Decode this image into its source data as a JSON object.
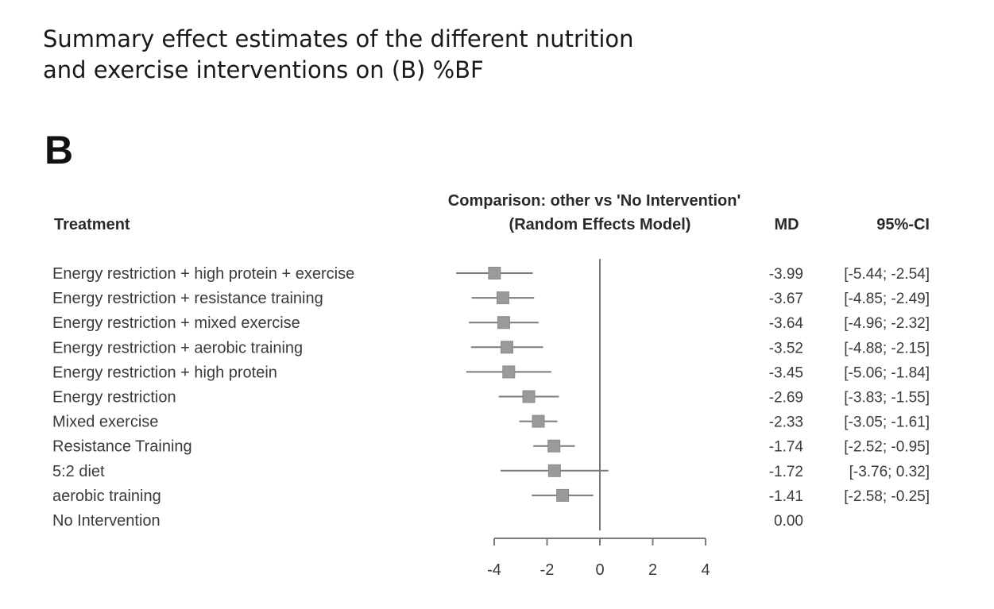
{
  "caption": {
    "line1": "Summary effect estimates of the different nutrition",
    "line2": "and exercise interventions on (B) %BF"
  },
  "panel_letter": "B",
  "chart_data": {
    "type": "forest",
    "title_line1": "Comparison: other vs 'No Intervention'",
    "title_line2": "(Random Effects Model)",
    "column_headers": {
      "treatment": "Treatment",
      "md": "MD",
      "ci": "95%-CI"
    },
    "xlim": [
      -4,
      4
    ],
    "xticks": [
      -4,
      -2,
      0,
      2,
      4
    ],
    "reference_line": 0,
    "rows": [
      {
        "label": "Energy restriction + high protein + exercise",
        "md": -3.99,
        "lower": -5.44,
        "upper": -2.54,
        "md_text": "-3.99",
        "ci_text": "[-5.44; -2.54]"
      },
      {
        "label": "Energy restriction + resistance training",
        "md": -3.67,
        "lower": -4.85,
        "upper": -2.49,
        "md_text": "-3.67",
        "ci_text": "[-4.85; -2.49]"
      },
      {
        "label": "Energy restriction + mixed exercise",
        "md": -3.64,
        "lower": -4.96,
        "upper": -2.32,
        "md_text": "-3.64",
        "ci_text": "[-4.96; -2.32]"
      },
      {
        "label": "Energy restriction + aerobic training",
        "md": -3.52,
        "lower": -4.88,
        "upper": -2.15,
        "md_text": "-3.52",
        "ci_text": "[-4.88; -2.15]"
      },
      {
        "label": "Energy restriction + high protein",
        "md": -3.45,
        "lower": -5.06,
        "upper": -1.84,
        "md_text": "-3.45",
        "ci_text": "[-5.06; -1.84]"
      },
      {
        "label": "Energy restriction",
        "md": -2.69,
        "lower": -3.83,
        "upper": -1.55,
        "md_text": "-2.69",
        "ci_text": "[-3.83; -1.55]"
      },
      {
        "label": "Mixed exercise",
        "md": -2.33,
        "lower": -3.05,
        "upper": -1.61,
        "md_text": "-2.33",
        "ci_text": "[-3.05; -1.61]"
      },
      {
        "label": "Resistance Training",
        "md": -1.74,
        "lower": -2.52,
        "upper": -0.95,
        "md_text": "-1.74",
        "ci_text": "[-2.52; -0.95]"
      },
      {
        "label": "5:2 diet",
        "md": -1.72,
        "lower": -3.76,
        "upper": 0.32,
        "md_text": "-1.72",
        "ci_text": "[-3.76;  0.32]"
      },
      {
        "label": "aerobic training",
        "md": -1.41,
        "lower": -2.58,
        "upper": -0.25,
        "md_text": "-1.41",
        "ci_text": "[-2.58; -0.25]"
      },
      {
        "label": "No Intervention",
        "md": 0.0,
        "lower": null,
        "upper": null,
        "md_text": "0.00",
        "ci_text": ""
      }
    ],
    "colors": {
      "mark": "#9a9a9a",
      "line": "#7a7a7a",
      "text": "#3a3a3a"
    }
  }
}
